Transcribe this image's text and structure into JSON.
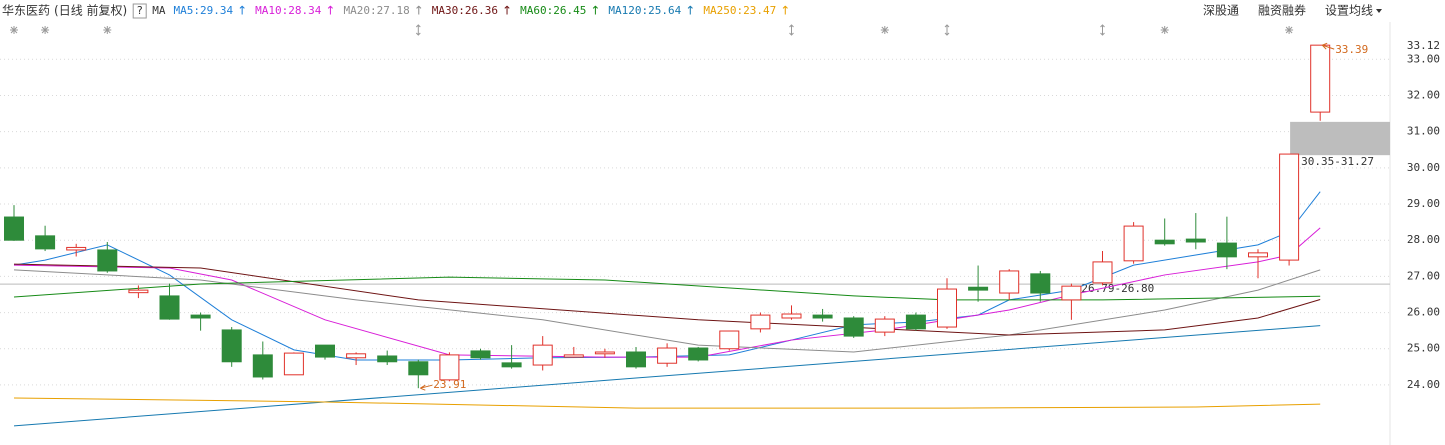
{
  "chart_data": {
    "type": "candlestick",
    "title": "华东医药",
    "subtitle": "(日线 前复权)",
    "help": "?",
    "ma_label": "MA",
    "legend_separator": ":",
    "legend_arrow": "↑",
    "toolbar": [
      "深股通",
      "融资融券",
      "设置均线"
    ],
    "up_color": "#e0312a",
    "down_color": "#2e8b3a",
    "ylim": [
      22.34,
      34.03
    ],
    "yticks": [
      {
        "value": 24,
        "label": "24.00"
      },
      {
        "value": 25,
        "label": "25.00"
      },
      {
        "value": 26,
        "label": "26.00"
      },
      {
        "value": 27,
        "label": "27.00"
      },
      {
        "value": 28,
        "label": "28.00"
      },
      {
        "value": 29,
        "label": "29.00"
      },
      {
        "value": 30,
        "label": "30.00"
      },
      {
        "value": 31,
        "label": "31.00"
      },
      {
        "value": 32,
        "label": "32.00"
      },
      {
        "value": 33,
        "label": "33.00"
      }
    ],
    "axis_top_label": 33.12,
    "grid": true,
    "candles": [
      [
        28.64,
        28.97,
        27.98,
        28.0
      ],
      [
        28.12,
        28.4,
        27.7,
        27.76
      ],
      [
        27.73,
        27.9,
        27.55,
        27.8
      ],
      [
        27.73,
        27.95,
        27.1,
        27.15
      ],
      [
        26.55,
        26.75,
        26.4,
        26.62
      ],
      [
        26.46,
        26.8,
        25.8,
        25.82
      ],
      [
        25.93,
        26.0,
        25.5,
        25.85
      ],
      [
        25.52,
        25.6,
        24.5,
        24.64
      ],
      [
        24.83,
        25.2,
        24.15,
        24.22
      ],
      [
        24.28,
        24.9,
        24.28,
        24.88
      ],
      [
        25.1,
        25.1,
        24.7,
        24.77
      ],
      [
        24.75,
        24.9,
        24.55,
        24.86
      ],
      [
        24.8,
        24.95,
        24.55,
        24.64
      ],
      [
        24.64,
        24.7,
        23.91,
        24.28
      ],
      [
        24.14,
        24.9,
        24.1,
        24.83
      ],
      [
        24.94,
        25.0,
        24.7,
        24.75
      ],
      [
        24.61,
        25.1,
        24.45,
        24.5
      ],
      [
        24.55,
        25.35,
        24.4,
        25.1
      ],
      [
        24.77,
        25.05,
        24.75,
        24.83
      ],
      [
        24.86,
        25.0,
        24.75,
        24.91
      ],
      [
        24.91,
        25.05,
        24.45,
        24.5
      ],
      [
        24.6,
        25.15,
        24.5,
        25.02
      ],
      [
        25.02,
        25.05,
        24.65,
        24.69
      ],
      [
        25.0,
        25.5,
        24.95,
        25.49
      ],
      [
        25.55,
        26.0,
        25.45,
        25.93
      ],
      [
        25.85,
        26.2,
        25.8,
        25.96
      ],
      [
        25.93,
        26.1,
        25.75,
        25.85
      ],
      [
        25.85,
        25.9,
        25.3,
        25.35
      ],
      [
        25.46,
        25.9,
        25.35,
        25.82
      ],
      [
        25.93,
        26.0,
        25.5,
        25.55
      ],
      [
        25.6,
        26.95,
        25.55,
        26.65
      ],
      [
        26.7,
        27.3,
        26.3,
        26.62
      ],
      [
        26.54,
        27.2,
        26.35,
        27.15
      ],
      [
        27.07,
        27.15,
        26.3,
        26.54
      ],
      [
        26.35,
        26.8,
        25.8,
        26.73
      ],
      [
        26.82,
        27.7,
        26.75,
        27.4
      ],
      [
        27.43,
        28.5,
        27.35,
        28.39
      ],
      [
        28.0,
        28.6,
        27.85,
        27.9
      ],
      [
        28.03,
        28.75,
        27.75,
        27.95
      ],
      [
        27.92,
        28.65,
        27.2,
        27.54
      ],
      [
        27.54,
        27.75,
        26.95,
        27.65
      ],
      [
        27.45,
        30.38,
        27.3,
        30.38
      ],
      [
        31.54,
        33.39,
        31.3,
        33.39
      ]
    ],
    "extremes": {
      "low": "23.91",
      "high": "33.39"
    },
    "gap": {
      "label": "30.35-31.27",
      "low": 30.35,
      "high": 31.27
    },
    "level": {
      "label": "26.79-26.80",
      "low": 26.79,
      "high": 26.8
    },
    "series": [
      {
        "name": "MA5",
        "color": "#1e7fd8",
        "last": 29.34,
        "x": [
          0,
          1,
          3,
          5,
          7,
          9,
          11,
          14,
          17,
          20,
          23,
          25,
          27,
          29,
          31,
          32,
          34,
          36,
          38,
          40,
          41,
          42
        ],
        "values": [
          27.31,
          27.45,
          27.87,
          27.04,
          25.8,
          24.97,
          24.69,
          24.69,
          24.75,
          24.77,
          24.83,
          25.24,
          25.66,
          25.74,
          25.93,
          26.35,
          26.62,
          27.31,
          27.59,
          27.87,
          28.23,
          29.34
        ]
      },
      {
        "name": "MA10",
        "color": "#d81ed8",
        "last": 28.34,
        "x": [
          0,
          5,
          7,
          10,
          14,
          19,
          22,
          25,
          28,
          32,
          34,
          37,
          40,
          41,
          42
        ],
        "values": [
          27.31,
          27.23,
          26.9,
          25.8,
          24.83,
          24.77,
          24.77,
          25.24,
          25.52,
          26.07,
          26.49,
          27.04,
          27.4,
          27.59,
          28.34
        ]
      },
      {
        "name": "MA20",
        "color": "#8c8c8c",
        "last": 27.18,
        "x": [
          0,
          6,
          11,
          17,
          22,
          27,
          32,
          37,
          40,
          42
        ],
        "values": [
          27.18,
          26.9,
          26.35,
          25.8,
          25.1,
          24.91,
          25.38,
          26.07,
          26.62,
          27.18
        ]
      },
      {
        "name": "MA30",
        "color": "#6e1414",
        "last": 26.36,
        "x": [
          0,
          6,
          13,
          22,
          32,
          37,
          40,
          42
        ],
        "values": [
          27.34,
          27.23,
          26.35,
          25.8,
          25.38,
          25.52,
          25.85,
          26.36
        ]
      },
      {
        "name": "MA60",
        "color": "#168a16",
        "last": 26.45,
        "x": [
          0,
          6,
          14,
          19,
          27,
          30,
          35,
          42
        ],
        "values": [
          26.43,
          26.79,
          26.98,
          26.9,
          26.46,
          26.35,
          26.35,
          26.45
        ]
      },
      {
        "name": "MA120",
        "color": "#1679b0",
        "last": 25.64,
        "x": [
          0,
          20,
          42
        ],
        "values": [
          22.87,
          24.19,
          25.64
        ]
      },
      {
        "name": "MA250",
        "color": "#e8a000",
        "last": 23.47,
        "x": [
          0,
          10,
          20,
          30,
          38,
          42
        ],
        "values": [
          23.64,
          23.53,
          23.36,
          23.36,
          23.39,
          23.47
        ]
      }
    ]
  }
}
